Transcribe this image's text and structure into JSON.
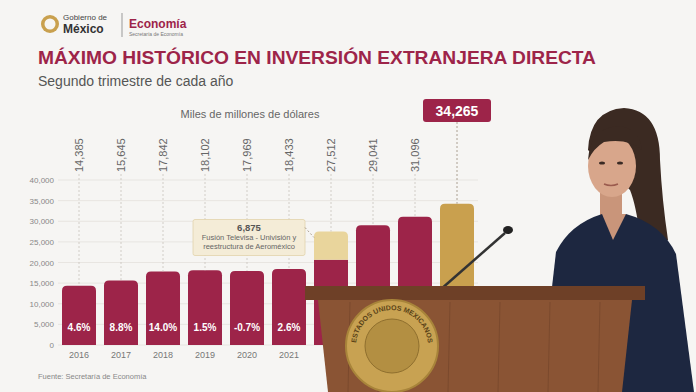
{
  "chart_data": {
    "type": "bar",
    "header": {
      "emblem_top": "Gobierno de",
      "emblem_bottom": "México",
      "ministry": "Economía",
      "ministry_full": "Secretaría de Economía"
    },
    "title": "MÁXIMO HISTÓRICO EN INVERSIÓN EXTRANJERA DIRECTA",
    "subtitle": "Segundo trimestre de cada año",
    "y_label": "Miles de millones de dólares",
    "source": "Fuente: Secretaría de Economía",
    "categories": [
      "2016",
      "2017",
      "2018",
      "2019",
      "2020",
      "2021",
      null,
      null,
      null,
      null
    ],
    "series": [
      {
        "color": "#9d2449",
        "colors": [
          "#9d2449",
          "#9d2449",
          "#9d2449",
          "#9d2449",
          "#9d2449",
          "#9d2449",
          "#9d2449",
          "#9d2449",
          "#9d2449",
          "#c9a04e"
        ],
        "values": [
          14385,
          15645,
          17842,
          18102,
          17969,
          18433,
          20637,
          29041,
          31096,
          34265
        ]
      },
      {
        "name": "Fusión Televisa - Univisión y reestructura de Aeroméxico",
        "color": "#e9d59c",
        "values": [
          null,
          null,
          null,
          null,
          null,
          null,
          6875,
          null,
          null,
          null
        ],
        "value_labels": [
          null,
          null,
          null,
          null,
          null,
          null,
          "6,875",
          null,
          null,
          null
        ]
      }
    ],
    "totals": {
      "values": [
        14385,
        15645,
        17842,
        18102,
        17969,
        18433,
        27512,
        29041,
        31096,
        34265
      ],
      "value_labels": [
        "14,385",
        "15,645",
        "17,842",
        "18,102",
        "17,969",
        "18,433",
        "27,512",
        "29,041",
        "31,096",
        "34,265"
      ]
    },
    "growth": {
      "values": [
        4.6,
        8.8,
        14.0,
        1.5,
        -0.7,
        2.6,
        null,
        null,
        null,
        null
      ],
      "value_labels": [
        "4.6%",
        "8.8%",
        "14.0%",
        "1.5%",
        "-0.7%",
        "2.6%",
        null,
        null,
        null,
        null
      ]
    },
    "podium": {
      "seal_text": "ESTADOS UNIDOS MEXICANOS"
    },
    "stacked": true,
    "data_labels": true,
    "grid": true,
    "ylim": [
      0,
      40000
    ],
    "yticks": [
      0,
      {
        "value": 5000,
        "label": "5,000"
      },
      {
        "value": 10000,
        "label": "10,000"
      },
      {
        "value": 15000,
        "label": "15,000"
      },
      {
        "value": 20000,
        "label": "20,000"
      },
      {
        "value": 25000,
        "label": "25,000"
      },
      {
        "value": 30000,
        "label": "30,000"
      },
      {
        "value": 35000,
        "label": "35,000"
      },
      {
        "value": 40000,
        "label": "40,000"
      }
    ]
  }
}
